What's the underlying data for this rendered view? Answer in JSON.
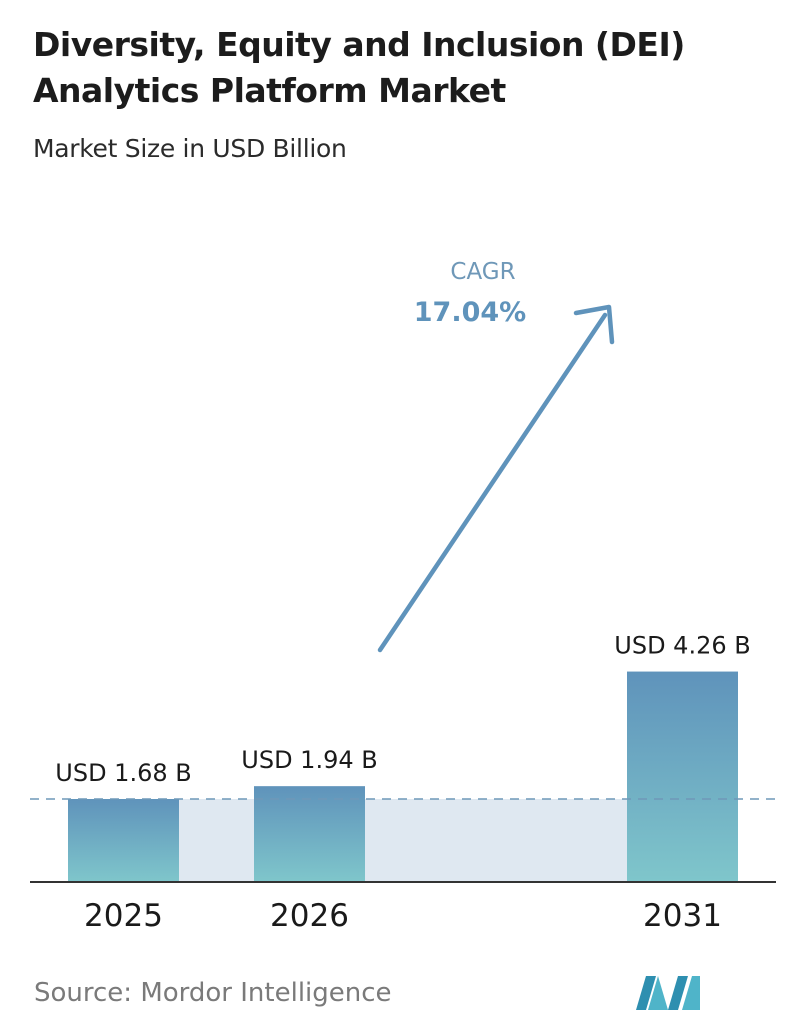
{
  "title": "Diversity, Equity and Inclusion (DEI) Analytics Platform Market",
  "subtitle": "Market Size in USD Billion",
  "source": "Source: Mordor Intelligence",
  "colors": {
    "bar_top": "#5f93bb",
    "bar_bottom": "#7fc6cb",
    "band": "#dfe8f1",
    "arrow": "#5f93bb",
    "dashed_line": "#6f98b8",
    "axis": "#333333",
    "cagr_label": "#6f98b8",
    "cagr_value": "#5f93bb"
  },
  "cagr": {
    "label": "CAGR",
    "value": "17.04%"
  },
  "chart_data": {
    "type": "bar",
    "categories": [
      "2025",
      "2026",
      "2031"
    ],
    "values": [
      1.68,
      1.94,
      4.26
    ],
    "data_labels": [
      "USD 1.68 B",
      "USD 1.94 B",
      "USD 4.26 B"
    ],
    "unit": "USD Billion",
    "grid": false,
    "reference_line": 1.68
  }
}
